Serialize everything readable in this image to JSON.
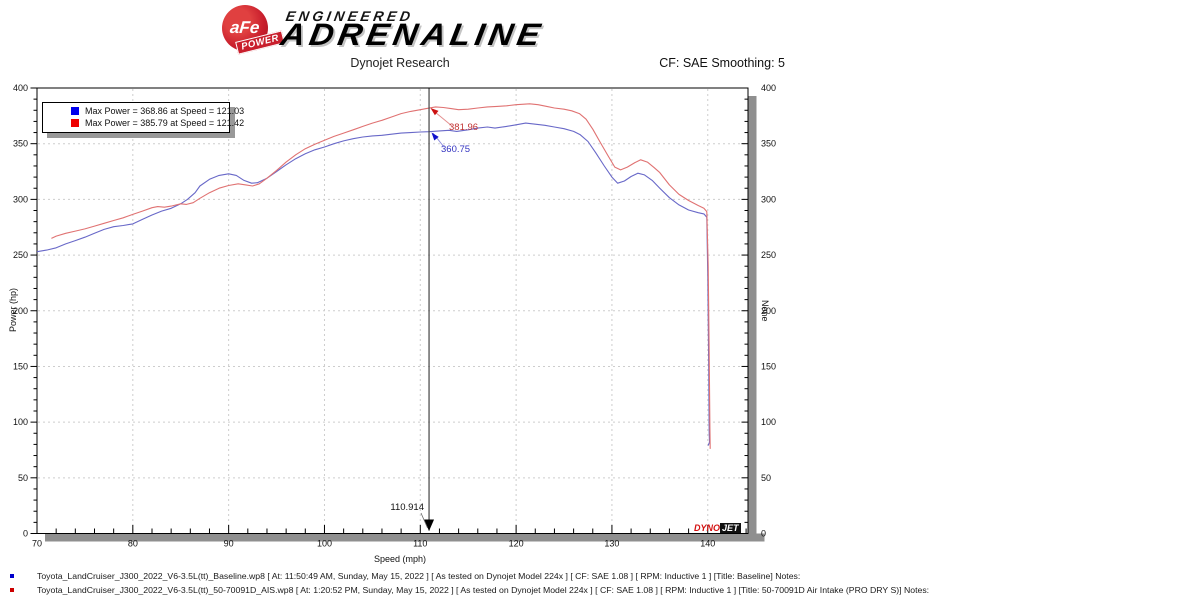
{
  "header": {
    "logo": {
      "badge": "aFe",
      "banner": "POWER",
      "line1": "ENGINEERED",
      "line2": "ADRENALINE"
    },
    "title": "Dynojet Research",
    "smoothing": "CF: SAE Smoothing: 5"
  },
  "chart_data": {
    "type": "line",
    "title": "Dynojet Research",
    "xlabel": "Speed (mph)",
    "ylabel_left": "Power (hp)",
    "ylabel_right": "None",
    "xlim": [
      70,
      144.2
    ],
    "ylim": [
      0,
      400
    ],
    "x_major_ticks": [
      70,
      80,
      90,
      100,
      110,
      120,
      130,
      140
    ],
    "x_minor_step": 2,
    "y_major_ticks": [
      0,
      50,
      100,
      150,
      200,
      250,
      300,
      350,
      400
    ],
    "y_minor_step": 10,
    "grid": "dashed-major",
    "legend_position": "top-left",
    "legend": [
      {
        "color": "#0000ee",
        "label": "Max Power = 368.86 at Speed = 121.03"
      },
      {
        "color": "#ee0000",
        "label": "Max Power = 385.79 at Speed = 121.42"
      }
    ],
    "cursor": {
      "mph": 110.914,
      "label": "110.914"
    },
    "markers": [
      {
        "mph": 110.914,
        "hp": 381.96,
        "label": "381.96",
        "series": "50-70091D Air Intake (PRO DRY S)",
        "color": "#c03333",
        "line_color": "#e49090"
      },
      {
        "mph": 110.914,
        "hp": 360.75,
        "label": "360.75",
        "series": "Baseline",
        "color": "#3333c0",
        "line_color": "#9090dd"
      }
    ],
    "series": [
      {
        "name": "Baseline",
        "color": "#6868c8",
        "legend_color": "#0000ee",
        "max_power": 368.86,
        "max_power_speed": 121.03,
        "points": [
          [
            70,
            253
          ],
          [
            71,
            254.5
          ],
          [
            72,
            256.5
          ],
          [
            73,
            260
          ],
          [
            74,
            263
          ],
          [
            75,
            266
          ],
          [
            76,
            269.5
          ],
          [
            77,
            273
          ],
          [
            78,
            275.5
          ],
          [
            79,
            276.5
          ],
          [
            80,
            278
          ],
          [
            81,
            282
          ],
          [
            82,
            286
          ],
          [
            83,
            289.5
          ],
          [
            84,
            292
          ],
          [
            85,
            296
          ],
          [
            85.7,
            300
          ],
          [
            86.5,
            306
          ],
          [
            87,
            312
          ],
          [
            88,
            318
          ],
          [
            89,
            321.5
          ],
          [
            90,
            323
          ],
          [
            90.8,
            321.5
          ],
          [
            91.6,
            317
          ],
          [
            92.4,
            314.5
          ],
          [
            93,
            315
          ],
          [
            94,
            319
          ],
          [
            95,
            325
          ],
          [
            96,
            331
          ],
          [
            97,
            336.5
          ],
          [
            98,
            341
          ],
          [
            99,
            344.5
          ],
          [
            100,
            347
          ],
          [
            101,
            350
          ],
          [
            102,
            352.5
          ],
          [
            103,
            354.5
          ],
          [
            104,
            356
          ],
          [
            105,
            357
          ],
          [
            106,
            357.5
          ],
          [
            107,
            358.5
          ],
          [
            108,
            359.5
          ],
          [
            109,
            360
          ],
          [
            110,
            360.5
          ],
          [
            110.914,
            360.75
          ],
          [
            112,
            361.5
          ],
          [
            113,
            362
          ],
          [
            113.8,
            361
          ],
          [
            115,
            362.5
          ],
          [
            116,
            364
          ],
          [
            117,
            365
          ],
          [
            117.8,
            364
          ],
          [
            119,
            365.5
          ],
          [
            120,
            367
          ],
          [
            121,
            368.5
          ],
          [
            122,
            367.5
          ],
          [
            123,
            366.5
          ],
          [
            124,
            365
          ],
          [
            125,
            363.5
          ],
          [
            126,
            361
          ],
          [
            126.7,
            358
          ],
          [
            127.5,
            352
          ],
          [
            128.3,
            342
          ],
          [
            129.2,
            330
          ],
          [
            130,
            320
          ],
          [
            130.6,
            314.5
          ],
          [
            131.3,
            316.5
          ],
          [
            132,
            320.5
          ],
          [
            132.7,
            323.5
          ],
          [
            133.4,
            322
          ],
          [
            134.2,
            317
          ],
          [
            135,
            310
          ],
          [
            136,
            301.5
          ],
          [
            137,
            295
          ],
          [
            138,
            290.5
          ],
          [
            139,
            288
          ],
          [
            139.6,
            287
          ],
          [
            139.9,
            284
          ],
          [
            140,
            230
          ],
          [
            140.1,
            150
          ],
          [
            140.15,
            90
          ],
          [
            140.18,
            82
          ],
          [
            140.05,
            79
          ]
        ]
      },
      {
        "name": "50-70091D Air Intake (PRO DRY S)",
        "color": "#e07272",
        "legend_color": "#ee0000",
        "max_power": 385.79,
        "max_power_speed": 121.42,
        "points": [
          [
            71.5,
            265
          ],
          [
            72,
            267
          ],
          [
            73,
            269.5
          ],
          [
            74,
            271.5
          ],
          [
            75,
            273.5
          ],
          [
            76,
            276
          ],
          [
            77,
            278.5
          ],
          [
            78,
            281
          ],
          [
            79,
            283.5
          ],
          [
            80,
            286.5
          ],
          [
            81,
            289.5
          ],
          [
            82,
            292.5
          ],
          [
            82.6,
            293.5
          ],
          [
            83.3,
            293
          ],
          [
            84,
            294
          ],
          [
            85,
            296
          ],
          [
            85.6,
            295.5
          ],
          [
            86.3,
            297
          ],
          [
            87,
            301
          ],
          [
            88,
            306
          ],
          [
            89,
            310
          ],
          [
            90,
            312.5
          ],
          [
            91,
            314
          ],
          [
            91.8,
            313
          ],
          [
            92.5,
            312
          ],
          [
            93.2,
            314
          ],
          [
            94,
            319
          ],
          [
            95,
            326
          ],
          [
            96,
            333.5
          ],
          [
            97,
            340
          ],
          [
            98,
            345.5
          ],
          [
            99,
            349.5
          ],
          [
            100,
            353
          ],
          [
            101,
            356.5
          ],
          [
            102,
            359.5
          ],
          [
            103,
            362.5
          ],
          [
            104,
            365.5
          ],
          [
            105,
            368.5
          ],
          [
            106,
            371
          ],
          [
            107,
            374
          ],
          [
            108,
            377
          ],
          [
            109,
            379
          ],
          [
            110,
            380.5
          ],
          [
            110.914,
            381.96
          ],
          [
            111.6,
            383
          ],
          [
            112.4,
            382.5
          ],
          [
            113.2,
            381.5
          ],
          [
            114,
            380.5
          ],
          [
            115,
            381
          ],
          [
            116,
            382
          ],
          [
            117,
            383
          ],
          [
            118,
            383.5
          ],
          [
            119,
            384
          ],
          [
            120,
            385
          ],
          [
            121.42,
            385.79
          ],
          [
            122.3,
            385
          ],
          [
            123.2,
            383.5
          ],
          [
            124,
            382
          ],
          [
            125,
            381
          ],
          [
            125.8,
            379.5
          ],
          [
            126.6,
            377
          ],
          [
            127.3,
            372
          ],
          [
            128,
            363
          ],
          [
            128.8,
            351
          ],
          [
            129.6,
            339
          ],
          [
            130.3,
            329
          ],
          [
            130.9,
            326.5
          ],
          [
            131.6,
            329
          ],
          [
            132.4,
            333
          ],
          [
            133,
            335.5
          ],
          [
            133.7,
            333.5
          ],
          [
            134.4,
            328.5
          ],
          [
            135,
            324
          ],
          [
            136,
            313
          ],
          [
            137,
            304.5
          ],
          [
            138,
            299
          ],
          [
            139,
            294.5
          ],
          [
            139.6,
            292
          ],
          [
            139.9,
            289
          ],
          [
            140.05,
            240
          ],
          [
            140.15,
            160
          ],
          [
            140.22,
            95
          ],
          [
            140.25,
            76
          ]
        ]
      }
    ],
    "watermark": {
      "dyno": "DYNO",
      "jet": "JET"
    }
  },
  "footer": {
    "runs": [
      {
        "bullet_color": "#0000cc",
        "text": "Toyota_LandCruiser_J300_2022_V6-3.5L(tt)_Baseline.wp8 [ At: 11:50:49 AM, Sunday, May 15, 2022 ] [ As tested on Dynojet Model 224x ] [ CF: SAE 1.08 ] [ RPM: Inductive 1 ] [Title: Baseline]  Notes:"
      },
      {
        "bullet_color": "#cc0000",
        "text": "Toyota_LandCruiser_J300_2022_V6-3.5L(tt)_50-70091D_AIS.wp8 [ At: 1:20:52 PM, Sunday, May 15, 2022 ] [ As tested on Dynojet Model 224x ] [ CF: SAE 1.08 ] [ RPM: Inductive 1 ] [Title: 50-70091D Air Intake (PRO DRY S)]  Notes:"
      }
    ]
  }
}
